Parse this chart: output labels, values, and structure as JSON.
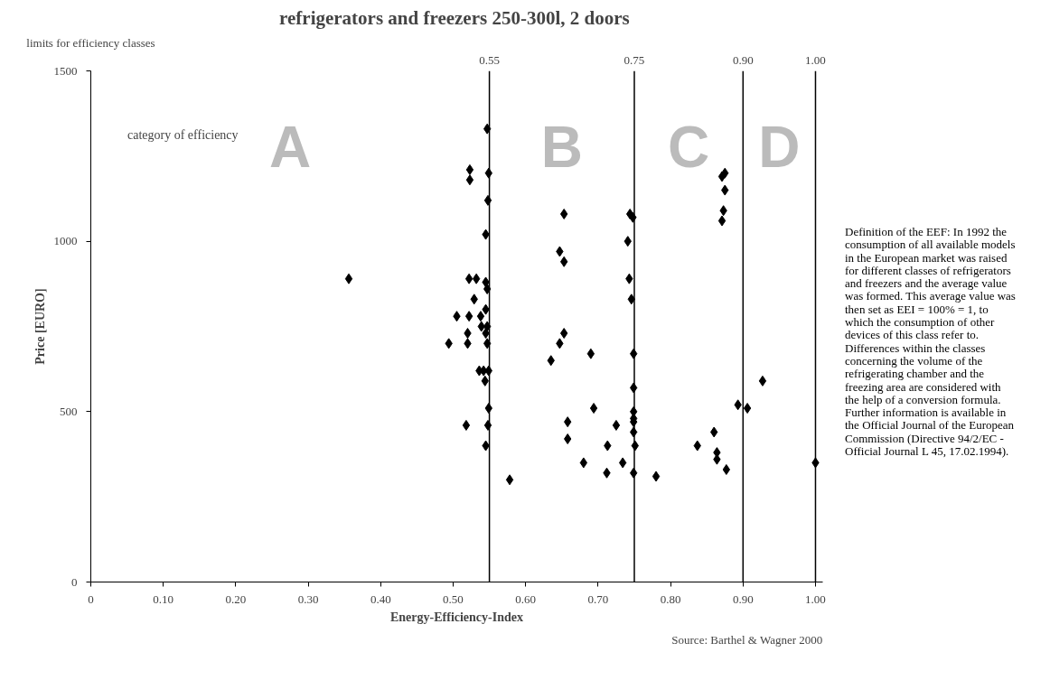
{
  "chart_data": {
    "type": "scatter",
    "title": "refrigerators and freezers  250-300l, 2 doors",
    "xlabel": "Energy-Efficiency-Index",
    "ylabel": "Price [EURO]",
    "x": [
      0.547,
      0.523,
      0.523,
      0.549,
      0.548,
      0.545,
      0.356,
      0.522,
      0.532,
      0.545,
      0.547,
      0.529,
      0.545,
      0.505,
      0.522,
      0.538,
      0.539,
      0.547,
      0.52,
      0.545,
      0.547,
      0.494,
      0.52,
      0.536,
      0.542,
      0.549,
      0.544,
      0.549,
      0.518,
      0.548,
      0.545,
      0.578,
      0.653,
      0.744,
      0.748,
      0.647,
      0.653,
      0.741,
      0.743,
      0.746,
      0.653,
      0.647,
      0.635,
      0.69,
      0.749,
      0.749,
      0.694,
      0.749,
      0.749,
      0.749,
      0.749,
      0.751,
      0.658,
      0.658,
      0.725,
      0.713,
      0.68,
      0.734,
      0.712,
      0.749,
      0.78,
      0.871,
      0.875,
      0.875,
      0.873,
      0.871,
      0.927,
      0.893,
      0.906,
      0.86,
      0.837,
      0.864,
      0.864,
      0.877,
      1.0
    ],
    "values": [
      1330,
      1210,
      1180,
      1200,
      1120,
      1020,
      890,
      890,
      890,
      880,
      860,
      830,
      800,
      780,
      780,
      780,
      750,
      750,
      730,
      730,
      700,
      700,
      700,
      620,
      620,
      620,
      590,
      510,
      460,
      460,
      400,
      300,
      1080,
      1080,
      1070,
      970,
      940,
      1000,
      890,
      830,
      730,
      700,
      650,
      670,
      670,
      570,
      510,
      500,
      480,
      470,
      440,
      400,
      470,
      420,
      460,
      400,
      350,
      350,
      320,
      320,
      310,
      1190,
      1200,
      1150,
      1090,
      1060,
      590,
      520,
      510,
      440,
      400,
      380,
      360,
      330,
      350
    ],
    "color": "#000000",
    "marker": "diamond",
    "grid": false,
    "xlim": [
      0,
      1.01
    ],
    "xticks": [
      0,
      {
        "value": 0.1,
        "label": "0.10"
      },
      {
        "value": 0.2,
        "label": "0.20"
      },
      {
        "value": 0.3,
        "label": "0.30"
      },
      {
        "value": 0.4,
        "label": "0.40"
      },
      {
        "value": 0.5,
        "label": "0.50"
      },
      {
        "value": 0.6,
        "label": "0.60"
      },
      {
        "value": 0.7,
        "label": "0.70"
      },
      {
        "value": 0.8,
        "label": "0.80"
      },
      {
        "value": 0.9,
        "label": "0.90"
      },
      {
        "value": 1.0,
        "label": "1.00"
      }
    ],
    "ylim": [
      0,
      1500
    ],
    "yticks": [
      0,
      500,
      1000,
      1500
    ],
    "ref_lines": [
      {
        "axis": "x",
        "value": 0.55,
        "label": "0.55",
        "color": "#000000"
      },
      {
        "axis": "x",
        "value": 0.75,
        "label": "0.75",
        "color": "#000000"
      },
      {
        "axis": "x",
        "value": 0.9,
        "label": "0.90",
        "color": "#000000"
      },
      {
        "axis": "x",
        "value": 1.0,
        "label": "1.00",
        "color": "#000000"
      }
    ],
    "annotations": [
      "A",
      "B",
      "C",
      "D",
      "category of efficiency",
      "limits for efficiency classes",
      "Definition of the EEF: In 1992 the consumption of all available models in the European market was raised for different classes of refrigerators and freezers and the average value was formed. This average value was then set as EEI = 100% = 1, to which the consumption of other devices of this class refer to. Differences within the classes concerning the volume of the refrigerating chamber and the freezing area are considered with the help of a conversion formula. Further information is available in the Official Journal of the European Commission (Directive 94/2/EC - Official Journal L 45, 17.02.1994).",
      "Source: Barthel & Wagner 2000"
    ]
  }
}
